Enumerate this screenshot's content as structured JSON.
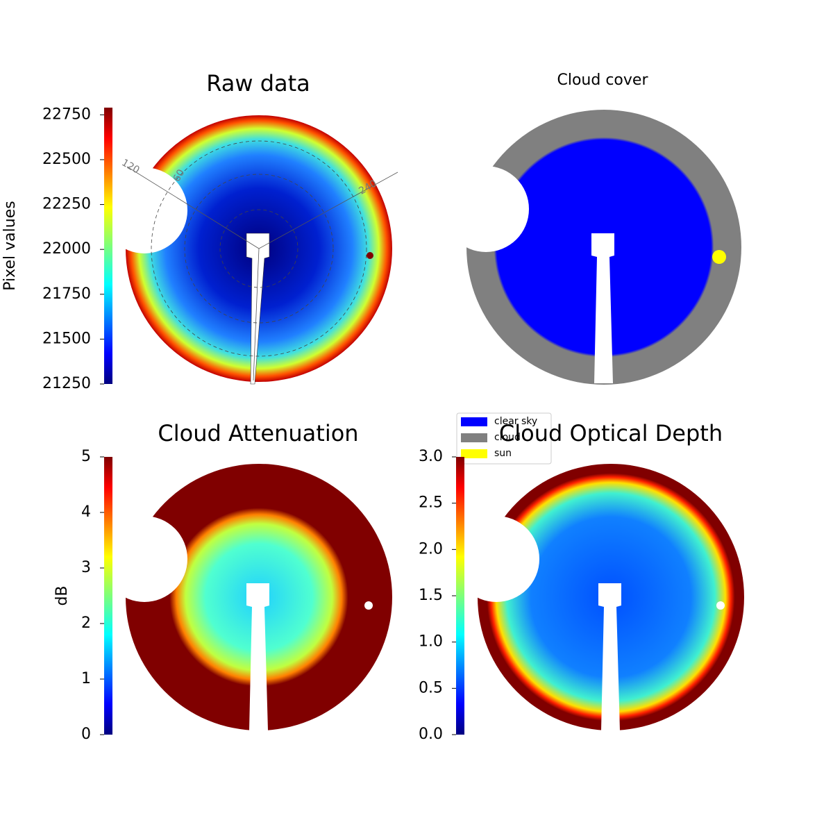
{
  "chart_data": [
    {
      "type": "heatmap",
      "title": "Raw data",
      "colorbar_label": "Pixel values",
      "cmap": "jet",
      "clim": [
        21250,
        22790
      ],
      "ticks": [
        21250,
        21500,
        21750,
        22000,
        22250,
        22500,
        22750
      ],
      "annotations": [
        "120",
        "60",
        "240"
      ]
    },
    {
      "type": "classes",
      "title": "Cloud cover",
      "series": [
        {
          "name": "clear sky",
          "color": "#0000ff"
        },
        {
          "name": "cloud",
          "color": "#808080"
        },
        {
          "name": "sun",
          "color": "#ffff00"
        }
      ]
    },
    {
      "type": "heatmap",
      "title": "Cloud Attenuation",
      "colorbar_label": "dB",
      "cmap": "jet",
      "clim": [
        0,
        5
      ],
      "ticks": [
        0,
        1,
        2,
        3,
        4,
        5
      ]
    },
    {
      "type": "heatmap",
      "title": "Cloud Optical Depth",
      "cmap": "jet",
      "clim": [
        0,
        3
      ],
      "ticks": [
        {
          "value": 0,
          "label": "0.0"
        },
        0.5,
        {
          "value": 1,
          "label": "1.0"
        },
        1.5,
        {
          "value": 2,
          "label": "2.0"
        },
        2.5,
        {
          "value": 3,
          "label": "3.0"
        }
      ]
    }
  ]
}
